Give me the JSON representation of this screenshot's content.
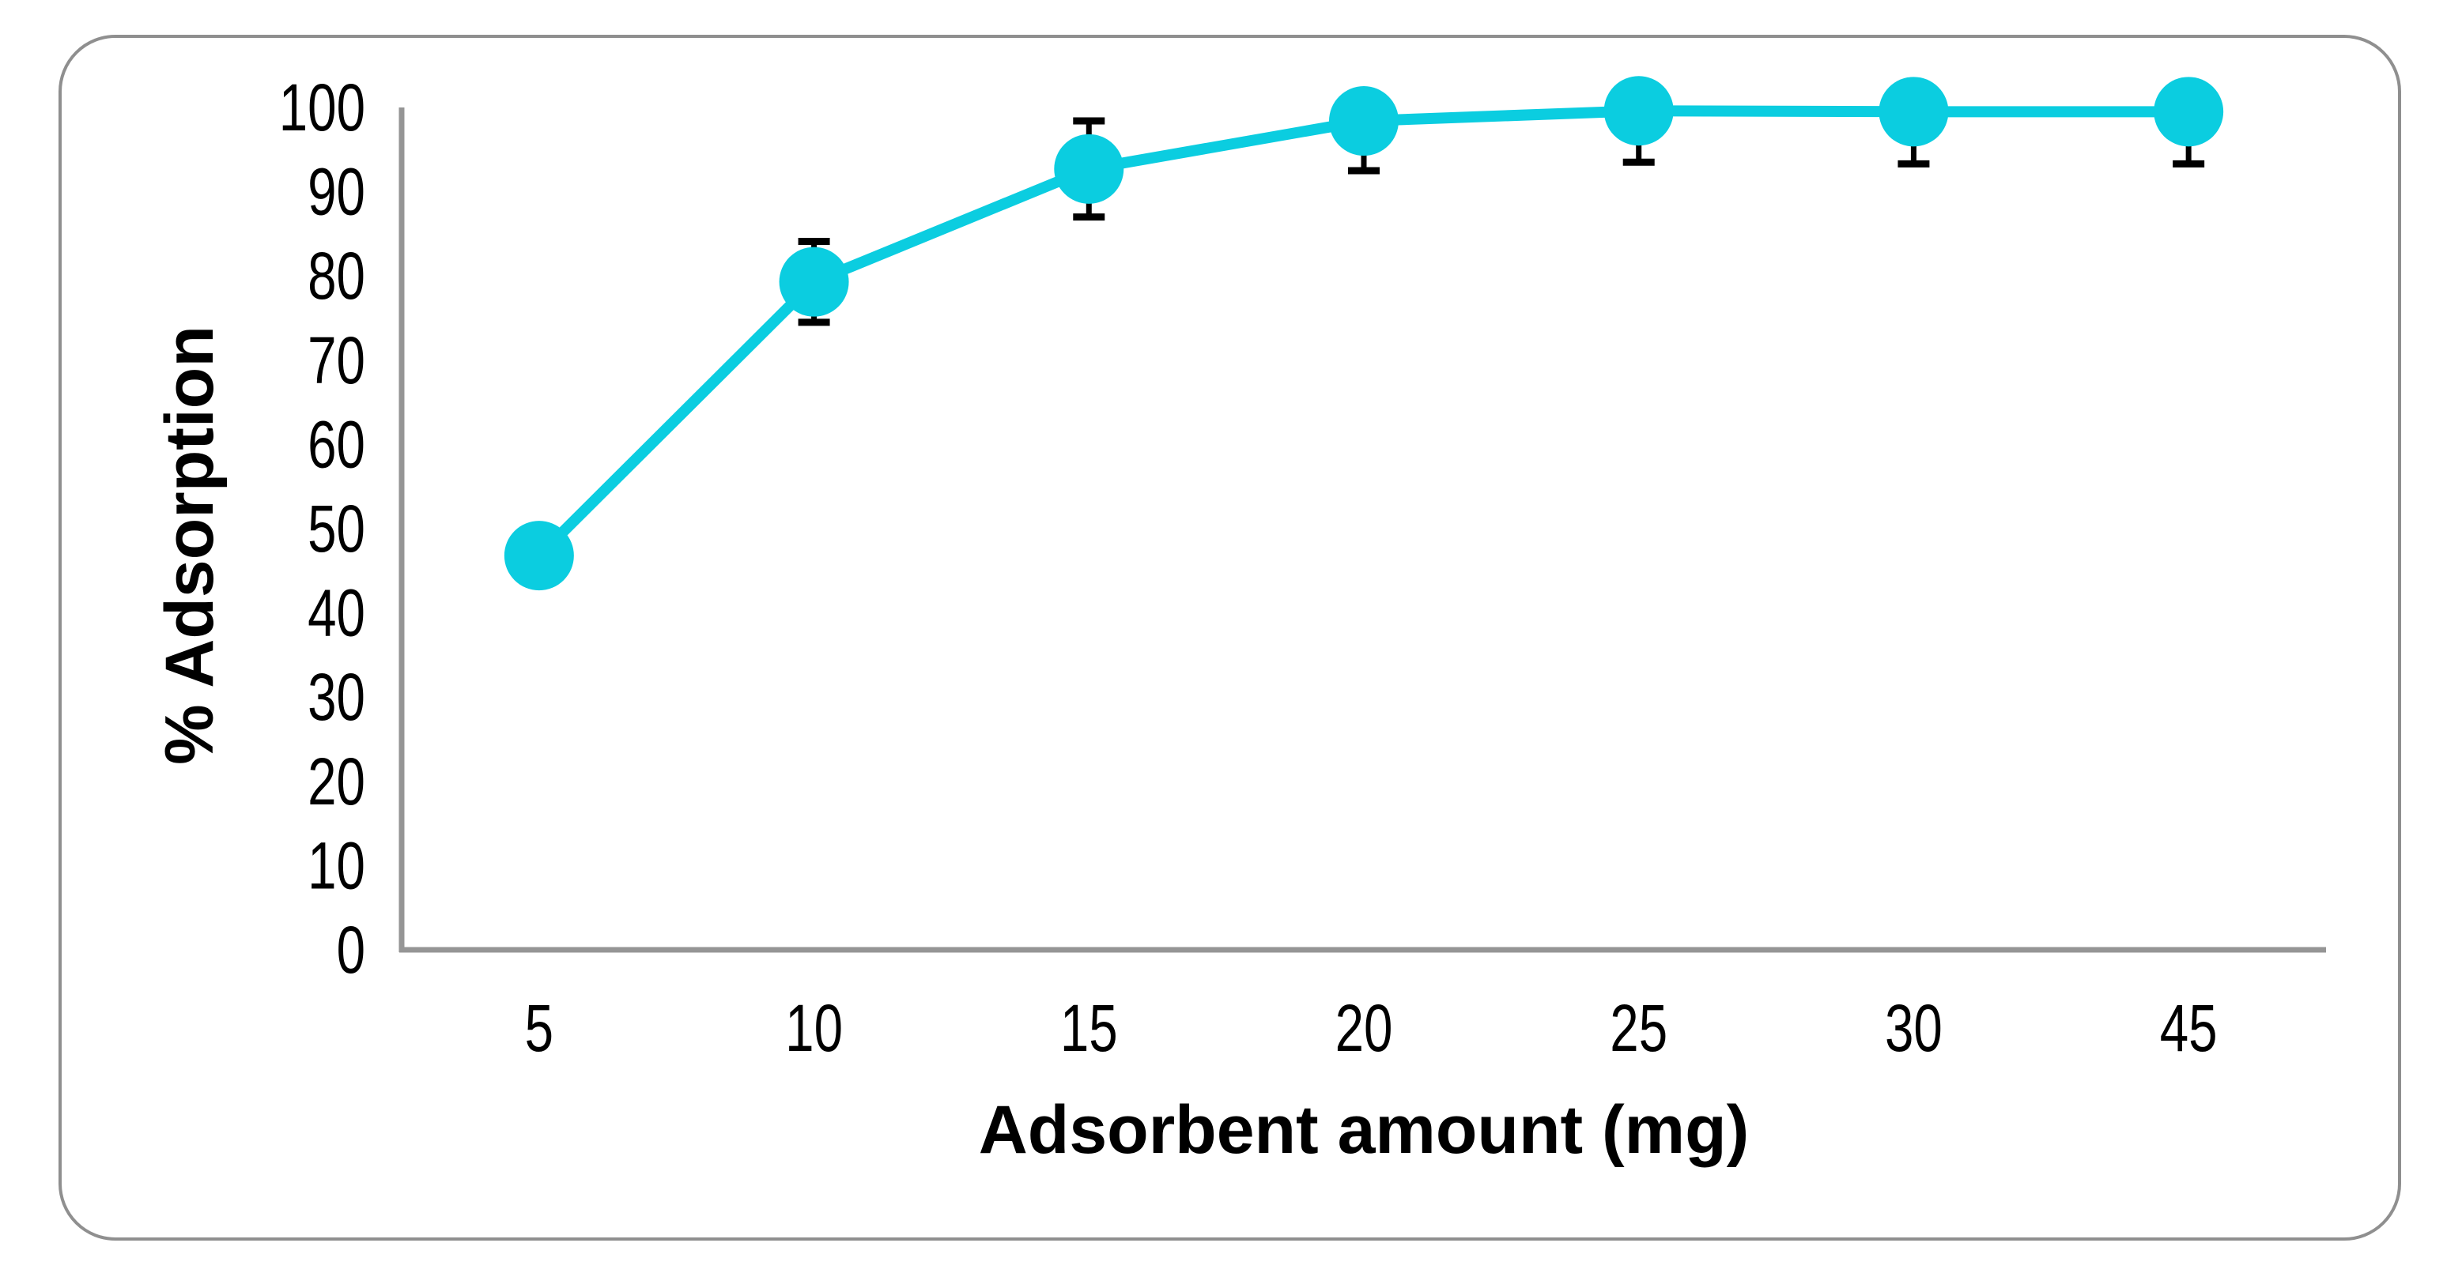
{
  "chart_data": {
    "type": "line",
    "title": "",
    "xlabel": "Adsorbent amount (mg)",
    "ylabel": "% Adsorption",
    "categories": [
      "5",
      "10",
      "15",
      "20",
      "25",
      "30",
      "45"
    ],
    "series": [
      {
        "name": "% Adsorption",
        "values": [
          46.8,
          79.3,
          92.7,
          98.4,
          99.6,
          99.5,
          99.5
        ],
        "error_bars": [
          0,
          4.8,
          5.7,
          5.9,
          6.1,
          6.2,
          6.2
        ]
      }
    ],
    "ylim": [
      0,
      100
    ],
    "yticks": [
      0,
      10,
      20,
      30,
      40,
      50,
      60,
      70,
      80,
      90,
      100
    ],
    "grid": false,
    "legend": "none",
    "marker": "circle",
    "x_axis_type": "categorical"
  },
  "colors": {
    "series": "#0bcde0",
    "error_bar": "#000000",
    "axis_line": "#959595",
    "tick_text": "#000000",
    "frame_border": "#8f8f8f",
    "background": "#ffffff"
  }
}
